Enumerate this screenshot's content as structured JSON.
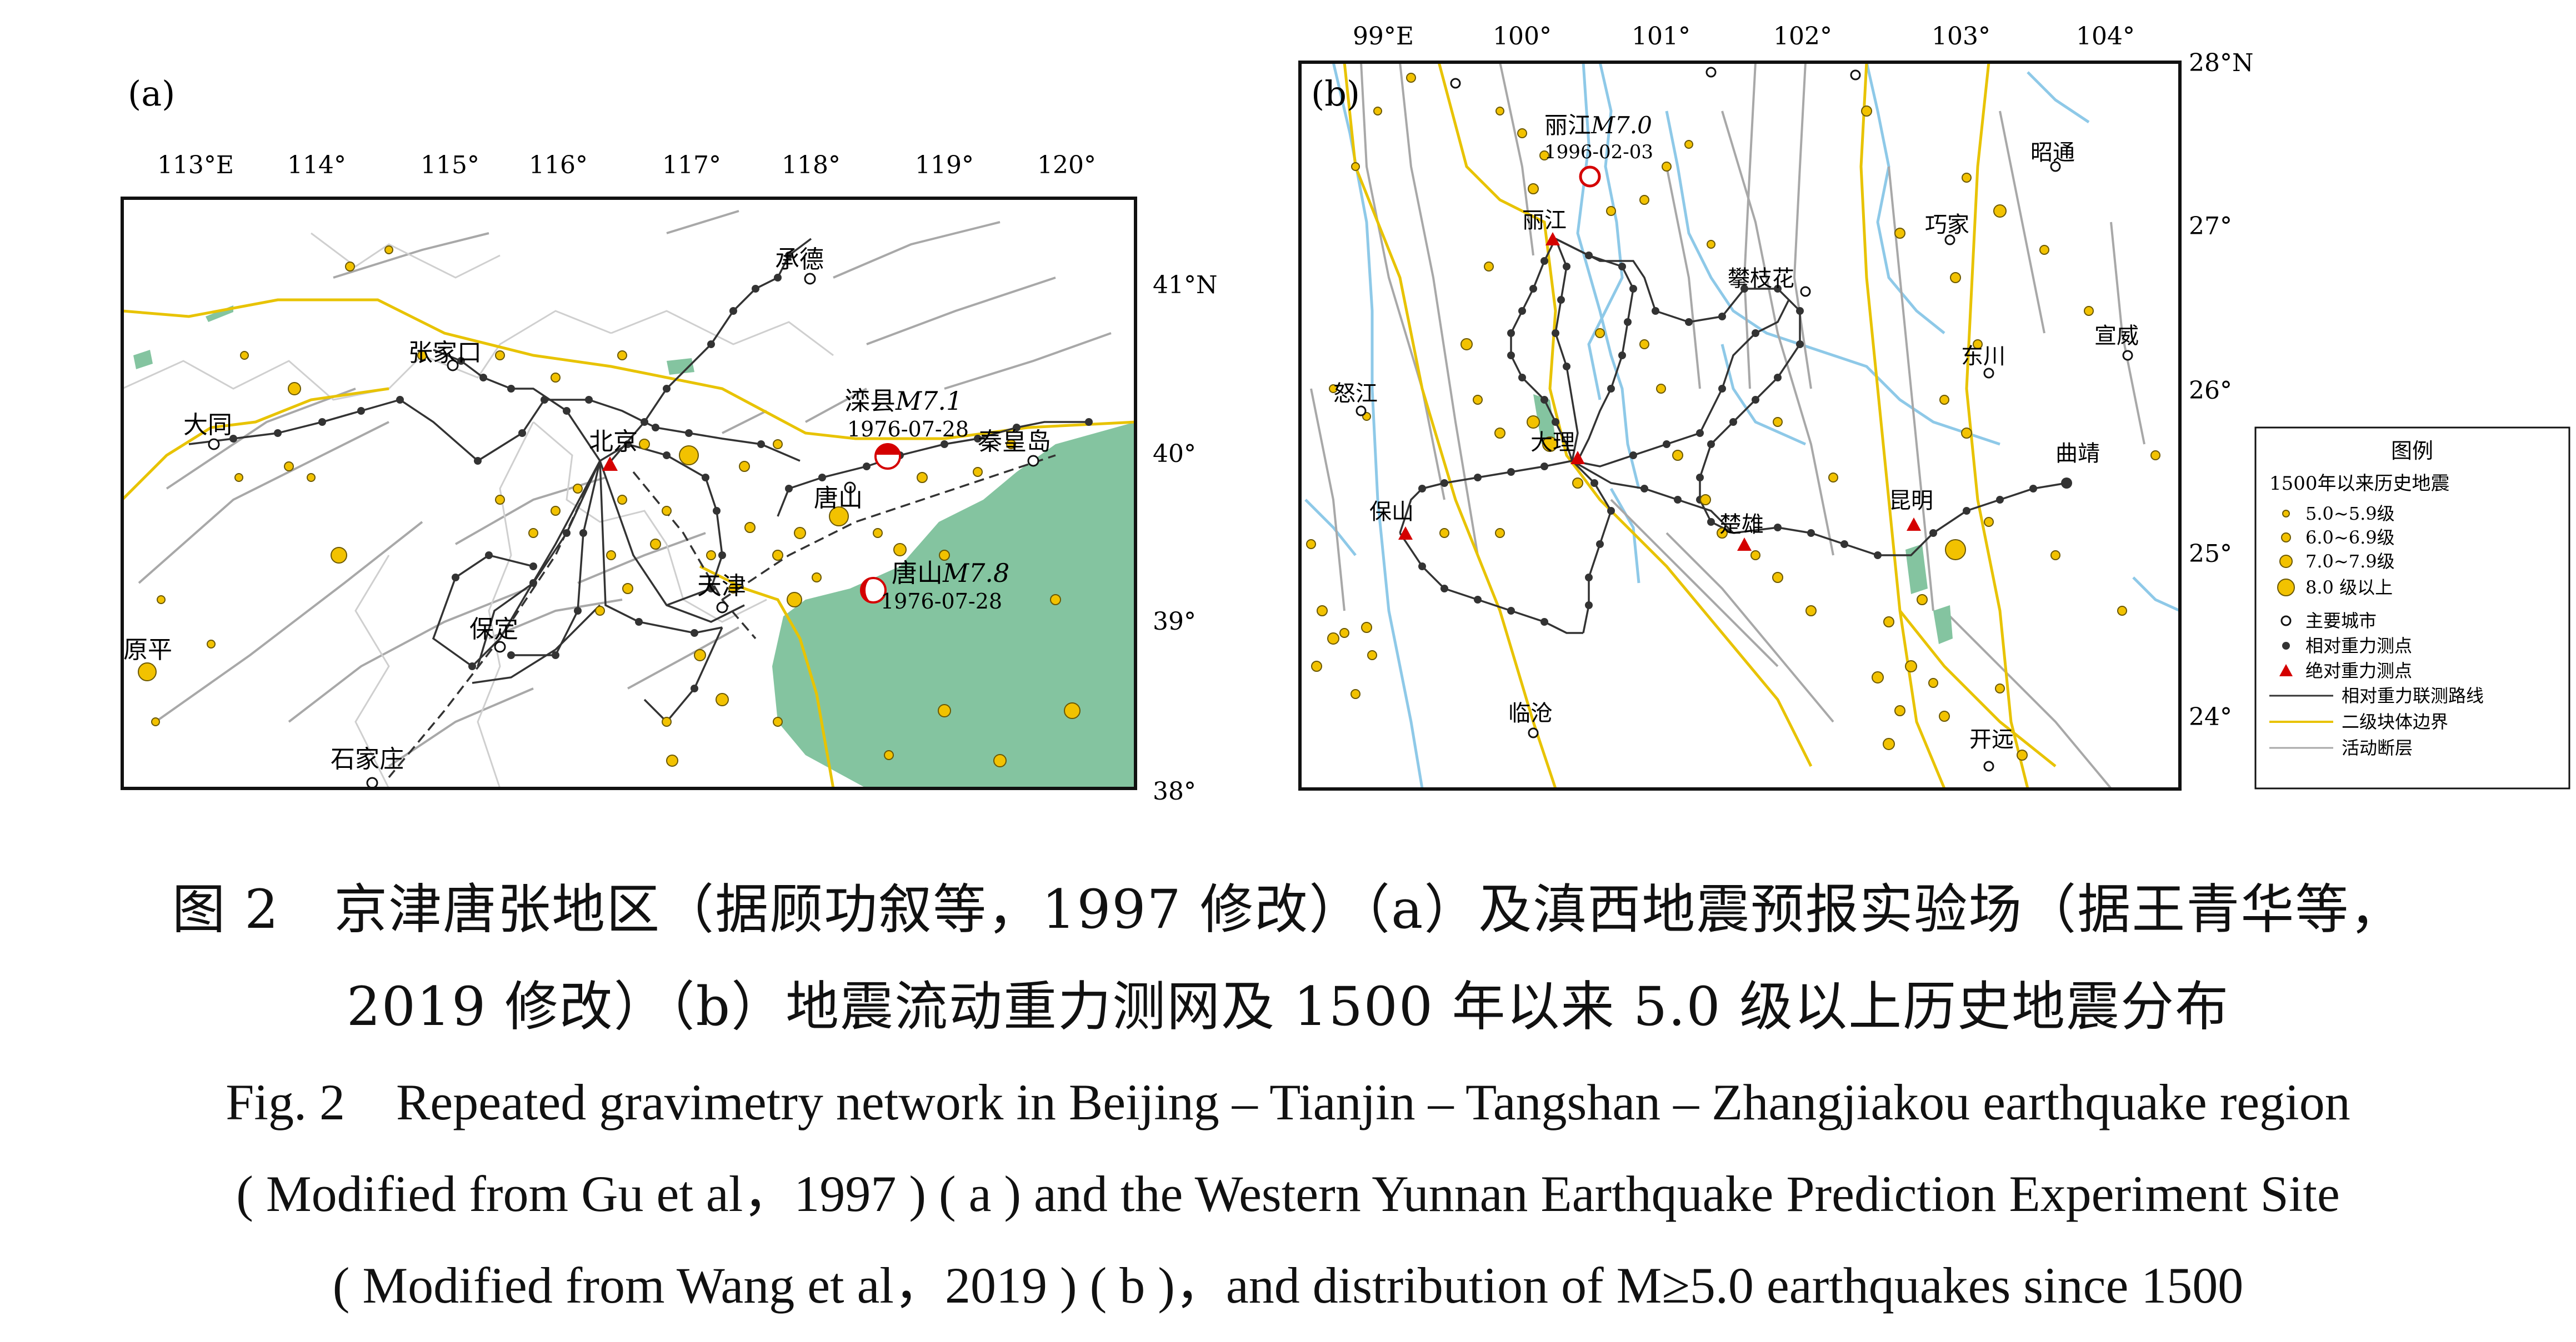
{
  "panel_a": {
    "label": "(a)",
    "lon_ticks": [
      "113°E",
      "114°",
      "115°",
      "116°",
      "117°",
      "118°",
      "119°",
      "120°"
    ],
    "lat_ticks": [
      "41°N",
      "40°",
      "39°",
      "38°"
    ],
    "cities": [
      "承德",
      "张家口",
      "大同",
      "北京",
      "秦皇岛",
      "唐山",
      "天津",
      "保定",
      "原平",
      "石家庄"
    ],
    "quake1": {
      "name": "滦县",
      "mag": "M7.1",
      "date": "1976-07-28"
    },
    "quake2": {
      "name": "唐山",
      "mag": "M7.8",
      "date": "1976-07-28"
    }
  },
  "panel_b": {
    "label": "(b)",
    "lon_ticks": [
      "99°E",
      "100°",
      "101°",
      "102°",
      "103°",
      "104°"
    ],
    "lat_ticks": [
      "28°N",
      "27°",
      "26°",
      "25°",
      "24°"
    ],
    "cities": [
      "丽江",
      "攀枝花",
      "巧家",
      "昭通",
      "东川",
      "宣威",
      "怒江",
      "大理",
      "曲靖",
      "保山",
      "楚雄",
      "昆明",
      "临沧",
      "开远"
    ],
    "quake": {
      "name": "丽江",
      "mag": "M7.0",
      "date": "1996-02-03"
    }
  },
  "legend": {
    "title": "图例",
    "subtitle": "1500年以来历史地震",
    "items": [
      "5.0~5.9级",
      "6.0~6.9级",
      "7.0~7.9级",
      "8.0 级以上",
      "主要城市",
      "相对重力测点",
      "绝对重力测点",
      "相对重力联测路线",
      "二级块体边界",
      "活动断层"
    ]
  },
  "caption": {
    "zh_line1": "图 2　京津唐张地区（据顾功叙等，1997 修改）（a）及滇西地震预报实验场（据王青华等，",
    "zh_line2": "2019 修改）（b）地震流动重力测网及 1500 年以来 5.0 级以上历史地震分布",
    "en_line1": "Fig. 2　Repeated gravimetry network in Beijing – Tianjin – Tangshan – Zhangjiakou earthquake region",
    "en_line2": "( Modified from Gu et al，1997 ) ( a )  and the Western Yunnan Earthquake Prediction Experiment Site",
    "en_line3": "( Modified from Wang et al，2019 ) ( b )，and distribution of M≥5.0 earthquakes since 1500"
  },
  "colors": {
    "sea": "#84c4a0",
    "block_boundary": "#e8c300",
    "quake_fill": "#f2c200",
    "fault": "#a8a8a8",
    "network": "#333333",
    "absolute_point": "#d40000",
    "river": "#8ec9e8"
  }
}
